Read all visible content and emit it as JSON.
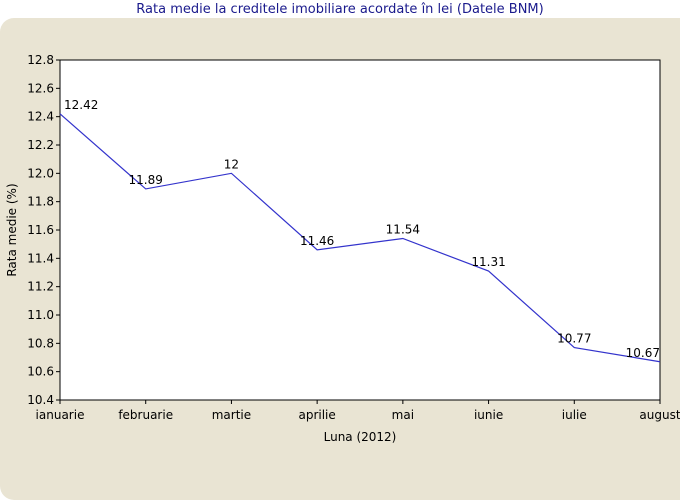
{
  "chart_data": {
    "type": "line",
    "title": "Rata medie la creditele imobiliare acordate în lei (Datele BNM)",
    "xlabel": "Luna (2012)",
    "ylabel": "Rata medie (%)",
    "categories": [
      "ianuarie",
      "februarie",
      "martie",
      "aprilie",
      "mai",
      "iunie",
      "iulie",
      "august"
    ],
    "values": [
      12.42,
      11.89,
      12.0,
      11.46,
      11.54,
      11.31,
      10.77,
      10.67
    ],
    "data_labels": [
      "12.42",
      "11.89",
      "12",
      "11.46",
      "11.54",
      "11.31",
      "10.77",
      "10.67"
    ],
    "ylim": [
      10.4,
      12.8
    ],
    "yticks": [
      "10.4",
      "10.6",
      "10.8",
      "11.0",
      "11.2",
      "11.4",
      "11.6",
      "11.8",
      "12.0",
      "12.2",
      "12.4",
      "12.6",
      "12.8"
    ],
    "grid": false,
    "line_color": "#3333cc",
    "background_color": "#e9e4d3",
    "plot_background": "#ffffff"
  }
}
